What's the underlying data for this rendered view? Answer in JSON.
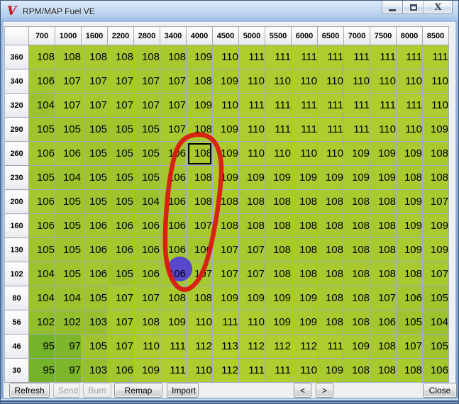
{
  "window": {
    "title": "RPM/MAP Fuel VE",
    "icon_glyph": "V",
    "close_glyph": "X"
  },
  "grid": {
    "col_headers": [
      "700",
      "1000",
      "1600",
      "2200",
      "2800",
      "3400",
      "4000",
      "4500",
      "5000",
      "5500",
      "6000",
      "6500",
      "7000",
      "7500",
      "8000",
      "8500"
    ],
    "row_headers": [
      "360",
      "340",
      "320",
      "290",
      "260",
      "230",
      "200",
      "160",
      "130",
      "102",
      "80",
      "56",
      "46",
      "30"
    ],
    "values": [
      [
        108,
        108,
        108,
        108,
        108,
        108,
        109,
        110,
        111,
        111,
        111,
        111,
        111,
        111,
        111,
        111
      ],
      [
        106,
        107,
        107,
        107,
        107,
        107,
        108,
        109,
        110,
        110,
        110,
        110,
        110,
        110,
        110,
        110
      ],
      [
        104,
        107,
        107,
        107,
        107,
        107,
        109,
        110,
        111,
        111,
        111,
        111,
        111,
        111,
        111,
        110
      ],
      [
        105,
        105,
        105,
        105,
        105,
        107,
        108,
        109,
        110,
        111,
        111,
        111,
        111,
        110,
        110,
        109
      ],
      [
        106,
        106,
        105,
        105,
        105,
        106,
        108,
        109,
        110,
        110,
        110,
        110,
        109,
        109,
        109,
        108
      ],
      [
        105,
        104,
        105,
        105,
        105,
        106,
        108,
        109,
        109,
        109,
        109,
        109,
        109,
        109,
        108,
        108
      ],
      [
        106,
        105,
        105,
        105,
        104,
        106,
        108,
        108,
        108,
        108,
        108,
        108,
        108,
        108,
        109,
        107
      ],
      [
        106,
        105,
        106,
        106,
        106,
        106,
        107,
        108,
        108,
        108,
        108,
        108,
        108,
        108,
        109,
        109
      ],
      [
        105,
        105,
        106,
        106,
        106,
        106,
        106,
        107,
        107,
        108,
        108,
        108,
        108,
        108,
        109,
        109
      ],
      [
        104,
        105,
        106,
        105,
        106,
        106,
        107,
        107,
        107,
        108,
        108,
        108,
        108,
        108,
        108,
        107
      ],
      [
        104,
        104,
        105,
        107,
        107,
        108,
        108,
        109,
        109,
        109,
        109,
        108,
        108,
        107,
        106,
        105
      ],
      [
        102,
        102,
        103,
        107,
        108,
        109,
        110,
        111,
        110,
        109,
        109,
        108,
        108,
        106,
        105,
        104
      ],
      [
        95,
        97,
        105,
        107,
        110,
        111,
        112,
        113,
        112,
        112,
        112,
        111,
        109,
        108,
        107,
        105
      ],
      [
        95,
        97,
        103,
        106,
        109,
        111,
        110,
        112,
        111,
        111,
        110,
        109,
        108,
        108,
        108,
        106
      ]
    ],
    "selected": {
      "row": 4,
      "col": 6,
      "row_header": "260",
      "col_header": "4000",
      "value": 108
    },
    "color_stops": [
      [
        95,
        "#74b32a"
      ],
      [
        100,
        "#8abb2b"
      ],
      [
        104,
        "#9cc22d"
      ],
      [
        107,
        "#a6c92e"
      ],
      [
        113,
        "#b2cf30"
      ]
    ]
  },
  "annotations": {
    "ellipse_color": "#dc1711",
    "dot_color": "#5848cb"
  },
  "footer": {
    "buttons": [
      {
        "id": "btn-refresh",
        "label": "Refresh",
        "enabled": true
      },
      {
        "id": "btn-send",
        "label": "Send",
        "enabled": false
      },
      {
        "id": "btn-burn",
        "label": "Burn",
        "enabled": false
      },
      {
        "id": "btn-remap",
        "label": "Remap",
        "enabled": true
      },
      {
        "id": "btn-import",
        "label": "Import",
        "enabled": true
      }
    ],
    "nav": [
      {
        "label": "<",
        "enabled": true
      },
      {
        "label": ">",
        "enabled": true
      }
    ],
    "close": {
      "label": "Close",
      "enabled": true
    }
  }
}
